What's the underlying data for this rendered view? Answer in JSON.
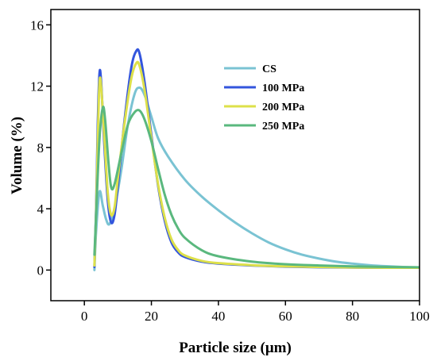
{
  "chart_data": {
    "type": "line",
    "title": "",
    "xlabel": "Particle size (μm)",
    "ylabel": "Volume (%)",
    "xlim": [
      -10,
      100
    ],
    "ylim": [
      -2,
      17
    ],
    "xticks": [
      0,
      20,
      40,
      60,
      80,
      100
    ],
    "yticks": [
      0,
      4,
      8,
      12,
      16
    ],
    "grid": false,
    "legend_position": "top-right",
    "series": [
      {
        "name": "CS",
        "color": "#7ac3d3",
        "points": [
          [
            3,
            0
          ],
          [
            3.5,
            2.5
          ],
          [
            4.5,
            5.1
          ],
          [
            5.5,
            4.2
          ],
          [
            6.5,
            3.3
          ],
          [
            7.5,
            3.0
          ],
          [
            9,
            4.0
          ],
          [
            11,
            6.5
          ],
          [
            13,
            9.5
          ],
          [
            15,
            11.5
          ],
          [
            16.5,
            11.9
          ],
          [
            18,
            11.4
          ],
          [
            20,
            10.0
          ],
          [
            22,
            8.6
          ],
          [
            25,
            7.4
          ],
          [
            30,
            5.9
          ],
          [
            35,
            4.8
          ],
          [
            40,
            3.9
          ],
          [
            45,
            3.1
          ],
          [
            50,
            2.4
          ],
          [
            55,
            1.8
          ],
          [
            60,
            1.35
          ],
          [
            65,
            1.0
          ],
          [
            70,
            0.75
          ],
          [
            75,
            0.55
          ],
          [
            80,
            0.42
          ],
          [
            85,
            0.32
          ],
          [
            90,
            0.25
          ],
          [
            95,
            0.2
          ],
          [
            100,
            0.17
          ]
        ]
      },
      {
        "name": "100 MPa",
        "color": "#3355dd",
        "points": [
          [
            3,
            0.2
          ],
          [
            3.5,
            4.0
          ],
          [
            4,
            9.5
          ],
          [
            4.5,
            12.8
          ],
          [
            5,
            12.3
          ],
          [
            6,
            8.0
          ],
          [
            7,
            4.5
          ],
          [
            8,
            3.1
          ],
          [
            9,
            3.6
          ],
          [
            10,
            5.5
          ],
          [
            12,
            9.8
          ],
          [
            14,
            13.2
          ],
          [
            15.5,
            14.3
          ],
          [
            16.5,
            14.1
          ],
          [
            18,
            12.2
          ],
          [
            20,
            8.8
          ],
          [
            22,
            5.5
          ],
          [
            24,
            3.2
          ],
          [
            26,
            1.8
          ],
          [
            28,
            1.15
          ],
          [
            30,
            0.85
          ],
          [
            35,
            0.55
          ],
          [
            40,
            0.42
          ],
          [
            50,
            0.3
          ],
          [
            60,
            0.22
          ],
          [
            70,
            0.18
          ],
          [
            80,
            0.16
          ],
          [
            90,
            0.15
          ],
          [
            100,
            0.15
          ]
        ]
      },
      {
        "name": "200 MPa",
        "color": "#dde04a",
        "points": [
          [
            3,
            0.3
          ],
          [
            3.5,
            3.8
          ],
          [
            4,
            8.5
          ],
          [
            4.5,
            12.2
          ],
          [
            5,
            12.0
          ],
          [
            6,
            8.5
          ],
          [
            7,
            5.0
          ],
          [
            8,
            3.6
          ],
          [
            9,
            4.1
          ],
          [
            10,
            6.0
          ],
          [
            12,
            9.6
          ],
          [
            14,
            12.5
          ],
          [
            15.5,
            13.5
          ],
          [
            16.5,
            13.3
          ],
          [
            18,
            11.7
          ],
          [
            20,
            8.6
          ],
          [
            22,
            5.6
          ],
          [
            24,
            3.4
          ],
          [
            26,
            2.0
          ],
          [
            28,
            1.3
          ],
          [
            30,
            0.95
          ],
          [
            35,
            0.6
          ],
          [
            40,
            0.45
          ],
          [
            50,
            0.32
          ],
          [
            60,
            0.24
          ],
          [
            70,
            0.2
          ],
          [
            80,
            0.17
          ],
          [
            90,
            0.15
          ],
          [
            100,
            0.15
          ]
        ]
      },
      {
        "name": "250 MPa",
        "color": "#5ab87e",
        "points": [
          [
            3,
            1.0
          ],
          [
            3.5,
            3.6
          ],
          [
            4.5,
            8.5
          ],
          [
            5.5,
            10.6
          ],
          [
            6.2,
            9.8
          ],
          [
            7.2,
            7.0
          ],
          [
            8,
            5.4
          ],
          [
            9,
            5.6
          ],
          [
            11,
            7.6
          ],
          [
            13,
            9.5
          ],
          [
            15,
            10.3
          ],
          [
            16.5,
            10.4
          ],
          [
            18,
            9.8
          ],
          [
            20,
            8.4
          ],
          [
            22,
            6.6
          ],
          [
            24,
            4.9
          ],
          [
            26,
            3.6
          ],
          [
            28,
            2.7
          ],
          [
            30,
            2.1
          ],
          [
            35,
            1.3
          ],
          [
            40,
            0.9
          ],
          [
            50,
            0.55
          ],
          [
            60,
            0.38
          ],
          [
            70,
            0.3
          ],
          [
            80,
            0.24
          ],
          [
            90,
            0.2
          ],
          [
            100,
            0.18
          ]
        ]
      }
    ]
  }
}
